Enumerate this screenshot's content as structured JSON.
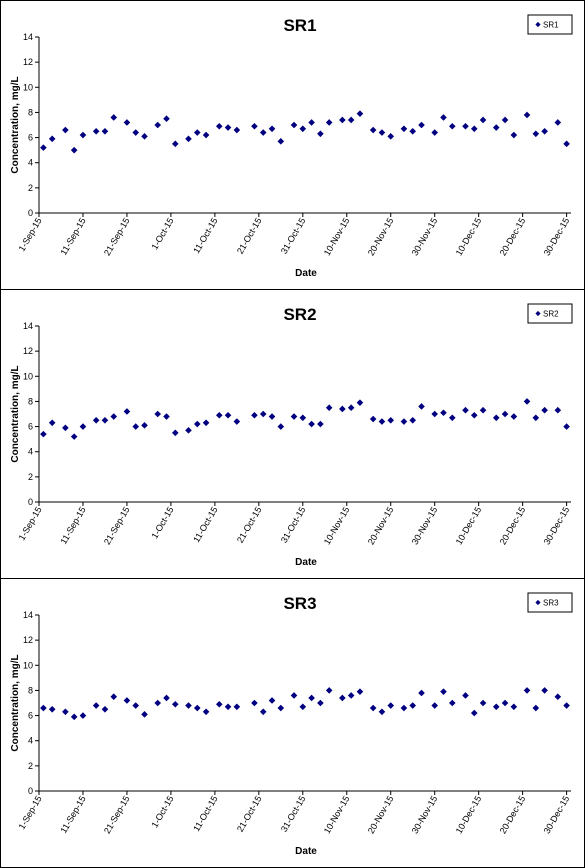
{
  "chart_data": [
    {
      "type": "scatter",
      "title": "SR1",
      "xlabel": "Date",
      "ylabel": "Concentration, mg/L",
      "ylim": [
        0,
        14
      ],
      "yticks": [
        0,
        2,
        4,
        6,
        8,
        10,
        12,
        14
      ],
      "xlim": [
        "2015-09-01",
        "2015-12-31"
      ],
      "xticks": [
        "1-Sep-15",
        "11-Sep-15",
        "21-Sep-15",
        "1-Oct-15",
        "11-Oct-15",
        "21-Oct-15",
        "31-Oct-15",
        "10-Nov-15",
        "20-Nov-15",
        "30-Nov-15",
        "10-Dec-15",
        "20-Dec-15",
        "30-Dec-15"
      ],
      "marker_color": "#000080",
      "legend_position": "top-right",
      "series": [
        {
          "name": "SR1",
          "x": [
            "2015-09-02",
            "2015-09-04",
            "2015-09-07",
            "2015-09-09",
            "2015-09-11",
            "2015-09-14",
            "2015-09-16",
            "2015-09-18",
            "2015-09-21",
            "2015-09-23",
            "2015-09-25",
            "2015-09-28",
            "2015-09-30",
            "2015-10-02",
            "2015-10-05",
            "2015-10-07",
            "2015-10-09",
            "2015-10-12",
            "2015-10-14",
            "2015-10-16",
            "2015-10-20",
            "2015-10-22",
            "2015-10-24",
            "2015-10-26",
            "2015-10-29",
            "2015-10-31",
            "2015-11-02",
            "2015-11-04",
            "2015-11-06",
            "2015-11-09",
            "2015-11-11",
            "2015-11-13",
            "2015-11-16",
            "2015-11-18",
            "2015-11-20",
            "2015-11-23",
            "2015-11-25",
            "2015-11-27",
            "2015-11-30",
            "2015-12-02",
            "2015-12-04",
            "2015-12-07",
            "2015-12-09",
            "2015-12-11",
            "2015-12-14",
            "2015-12-16",
            "2015-12-18",
            "2015-12-21",
            "2015-12-23",
            "2015-12-25",
            "2015-12-28",
            "2015-12-30"
          ],
          "y": [
            5.2,
            5.9,
            6.6,
            5.0,
            6.2,
            6.5,
            6.5,
            7.6,
            7.2,
            6.4,
            6.1,
            7.0,
            7.5,
            5.5,
            5.9,
            6.4,
            6.2,
            6.9,
            6.8,
            6.6,
            6.9,
            6.4,
            6.7,
            5.7,
            7.0,
            6.7,
            7.2,
            6.3,
            7.2,
            7.4,
            7.4,
            7.9,
            6.6,
            6.4,
            6.1,
            6.7,
            6.5,
            7.0,
            6.4,
            7.6,
            6.9,
            6.9,
            6.7,
            7.4,
            6.8,
            7.4,
            6.2,
            7.8,
            6.3,
            6.5,
            7.2,
            5.5
          ]
        }
      ]
    },
    {
      "type": "scatter",
      "title": "SR2",
      "xlabel": "Date",
      "ylabel": "Concentration, mg/L",
      "ylim": [
        0,
        14
      ],
      "yticks": [
        0,
        2,
        4,
        6,
        8,
        10,
        12,
        14
      ],
      "xlim": [
        "2015-09-01",
        "2015-12-31"
      ],
      "xticks": [
        "1-Sep-15",
        "11-Sep-15",
        "21-Sep-15",
        "1-Oct-15",
        "11-Oct-15",
        "21-Oct-15",
        "31-Oct-15",
        "10-Nov-15",
        "20-Nov-15",
        "30-Nov-15",
        "10-Dec-15",
        "20-Dec-15",
        "30-Dec-15"
      ],
      "marker_color": "#000080",
      "legend_position": "top-right",
      "series": [
        {
          "name": "SR2",
          "x": [
            "2015-09-02",
            "2015-09-04",
            "2015-09-07",
            "2015-09-09",
            "2015-09-11",
            "2015-09-14",
            "2015-09-16",
            "2015-09-18",
            "2015-09-21",
            "2015-09-23",
            "2015-09-25",
            "2015-09-28",
            "2015-09-30",
            "2015-10-02",
            "2015-10-05",
            "2015-10-07",
            "2015-10-09",
            "2015-10-12",
            "2015-10-14",
            "2015-10-16",
            "2015-10-20",
            "2015-10-22",
            "2015-10-24",
            "2015-10-26",
            "2015-10-29",
            "2015-10-31",
            "2015-11-02",
            "2015-11-04",
            "2015-11-06",
            "2015-11-09",
            "2015-11-11",
            "2015-11-13",
            "2015-11-16",
            "2015-11-18",
            "2015-11-20",
            "2015-11-23",
            "2015-11-25",
            "2015-11-27",
            "2015-11-30",
            "2015-12-02",
            "2015-12-04",
            "2015-12-07",
            "2015-12-09",
            "2015-12-11",
            "2015-12-14",
            "2015-12-16",
            "2015-12-18",
            "2015-12-21",
            "2015-12-23",
            "2015-12-25",
            "2015-12-28",
            "2015-12-30"
          ],
          "y": [
            5.4,
            6.3,
            5.9,
            5.2,
            6.0,
            6.5,
            6.5,
            6.8,
            7.2,
            6.0,
            6.1,
            7.0,
            6.8,
            5.5,
            5.7,
            6.2,
            6.3,
            6.9,
            6.9,
            6.4,
            6.9,
            7.0,
            6.8,
            6.0,
            6.8,
            6.7,
            6.2,
            6.2,
            7.5,
            7.4,
            7.5,
            7.9,
            6.6,
            6.4,
            6.5,
            6.4,
            6.5,
            7.6,
            7.0,
            7.1,
            6.7,
            7.3,
            6.9,
            7.3,
            6.7,
            7.0,
            6.8,
            8.0,
            6.7,
            7.3,
            7.3,
            6.0
          ]
        }
      ]
    },
    {
      "type": "scatter",
      "title": "SR3",
      "xlabel": "Date",
      "ylabel": "Concentration, mg/L",
      "ylim": [
        0,
        14
      ],
      "yticks": [
        0,
        2,
        4,
        6,
        8,
        10,
        12,
        14
      ],
      "xlim": [
        "2015-09-01",
        "2015-12-31"
      ],
      "xticks": [
        "1-Sep-15",
        "11-Sep-15",
        "21-Sep-15",
        "1-Oct-15",
        "11-Oct-15",
        "21-Oct-15",
        "31-Oct-15",
        "10-Nov-15",
        "20-Nov-15",
        "30-Nov-15",
        "10-Dec-15",
        "20-Dec-15",
        "30-Dec-15"
      ],
      "marker_color": "#000080",
      "legend_position": "top-right",
      "series": [
        {
          "name": "SR3",
          "x": [
            "2015-09-02",
            "2015-09-04",
            "2015-09-07",
            "2015-09-09",
            "2015-09-11",
            "2015-09-14",
            "2015-09-16",
            "2015-09-18",
            "2015-09-21",
            "2015-09-23",
            "2015-09-25",
            "2015-09-28",
            "2015-09-30",
            "2015-10-02",
            "2015-10-05",
            "2015-10-07",
            "2015-10-09",
            "2015-10-12",
            "2015-10-14",
            "2015-10-16",
            "2015-10-20",
            "2015-10-22",
            "2015-10-24",
            "2015-10-26",
            "2015-10-29",
            "2015-10-31",
            "2015-11-02",
            "2015-11-04",
            "2015-11-06",
            "2015-11-09",
            "2015-11-11",
            "2015-11-13",
            "2015-11-16",
            "2015-11-18",
            "2015-11-20",
            "2015-11-23",
            "2015-11-25",
            "2015-11-27",
            "2015-11-30",
            "2015-12-02",
            "2015-12-04",
            "2015-12-07",
            "2015-12-09",
            "2015-12-11",
            "2015-12-14",
            "2015-12-16",
            "2015-12-18",
            "2015-12-21",
            "2015-12-23",
            "2015-12-25",
            "2015-12-28",
            "2015-12-30"
          ],
          "y": [
            6.6,
            6.5,
            6.3,
            5.9,
            6.0,
            6.8,
            6.5,
            7.5,
            7.2,
            6.8,
            6.1,
            7.0,
            7.4,
            6.9,
            6.8,
            6.6,
            6.3,
            6.9,
            6.7,
            6.7,
            7.0,
            6.3,
            7.2,
            6.6,
            7.6,
            6.7,
            7.4,
            7.0,
            8.0,
            7.4,
            7.6,
            7.9,
            6.6,
            6.3,
            6.8,
            6.6,
            6.8,
            7.8,
            6.8,
            7.9,
            7.0,
            7.6,
            6.2,
            7.0,
            6.7,
            7.0,
            6.7,
            8.0,
            6.6,
            8.0,
            7.5,
            6.8
          ]
        }
      ]
    }
  ]
}
